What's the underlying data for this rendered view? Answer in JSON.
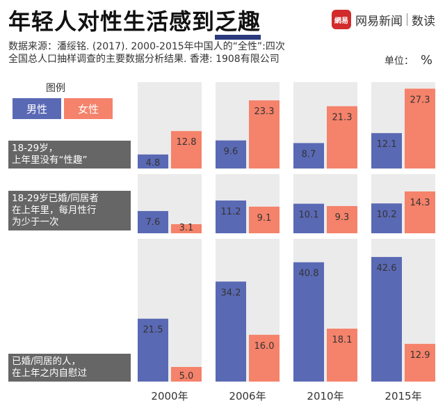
{
  "header": {
    "title_main": "年轻人对性生活感到",
    "title_highlight": "乏趣",
    "brand_logo": "網易",
    "brand_name": "网易新闻",
    "brand_sub": "数读"
  },
  "source_line1": "数据来源：潘绥铭. (2017). 2000-2015年中国人的“全性”:四次",
  "source_line2": "全国总人口抽样调查的主要数据分析结果. 香港: 1908有限公司",
  "unit_label": "单位：",
  "unit_symbol": "%",
  "legend": {
    "title": "图例",
    "male": "男性",
    "female": "女性"
  },
  "colors": {
    "male": "#5a69b4",
    "female": "#f5826a",
    "panel": "#ebebeb",
    "label_bg": "#666666"
  },
  "row_labels": [
    {
      "line1": "18-29岁，",
      "line2": "上年里没有“性趣”",
      "line3": ""
    },
    {
      "line1": "18-29岁已婚/同居者",
      "line2": "在上年里，每月性行",
      "line3": "为少于一次"
    },
    {
      "line1": "已婚/同居的人，",
      "line2": "在上年之内自慰过",
      "line3": ""
    }
  ],
  "chart_data": {
    "type": "bar",
    "categories": [
      "2000年",
      "2006年",
      "2010年",
      "2015年"
    ],
    "legend": [
      "男性",
      "女性"
    ],
    "groups": [
      {
        "label": "18-29岁，上年里没有“性趣”",
        "series": [
          {
            "name": "男性",
            "values": [
              4.8,
              9.6,
              8.7,
              12.1
            ]
          },
          {
            "name": "女性",
            "values": [
              12.8,
              23.3,
              21.3,
              27.3
            ]
          }
        ]
      },
      {
        "label": "18-29岁已婚/同居者在上年里，每月性行为少于一次",
        "series": [
          {
            "name": "男性",
            "values": [
              7.6,
              11.2,
              10.1,
              10.2
            ]
          },
          {
            "name": "女性",
            "values": [
              3.1,
              9.1,
              9.3,
              14.3
            ]
          }
        ]
      },
      {
        "label": "已婚/同居的人，在上年之内自慰过",
        "series": [
          {
            "name": "男性",
            "values": [
              21.5,
              34.2,
              40.8,
              42.6
            ]
          },
          {
            "name": "女性",
            "values": [
              5.0,
              16.0,
              18.1,
              12.9
            ]
          }
        ]
      }
    ]
  }
}
